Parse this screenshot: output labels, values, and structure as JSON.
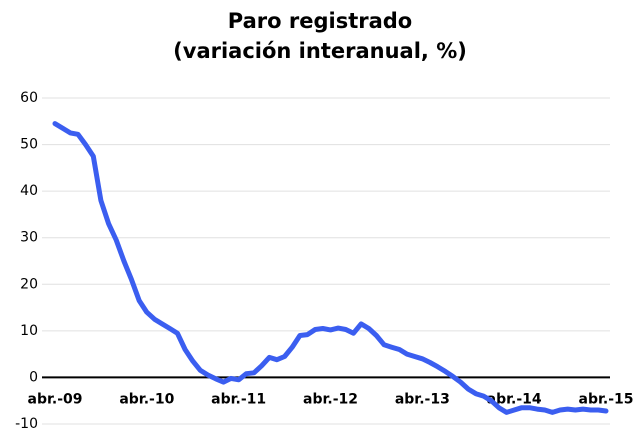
{
  "chart_data": {
    "type": "line",
    "title": "Paro registrado",
    "subtitle": "(variación interanual, %)",
    "categories": [
      "abr.-09",
      null,
      null,
      null,
      null,
      null,
      null,
      null,
      null,
      null,
      null,
      null,
      "abr.-10",
      null,
      null,
      null,
      null,
      null,
      null,
      null,
      null,
      null,
      null,
      null,
      "abr.-11",
      null,
      null,
      null,
      null,
      null,
      null,
      null,
      null,
      null,
      null,
      null,
      "abr.-12",
      null,
      null,
      null,
      null,
      null,
      null,
      null,
      null,
      null,
      null,
      null,
      "abr.-13",
      null,
      null,
      null,
      null,
      null,
      null,
      null,
      null,
      null,
      null,
      null,
      "abr.-14",
      null,
      null,
      null,
      null,
      null,
      null,
      null,
      null,
      null,
      null,
      null,
      "abr.-15"
    ],
    "series": [
      {
        "name": "Paro registrado",
        "color": "#3b5ef0",
        "values": [
          54.5,
          53.5,
          52.5,
          52.2,
          50,
          47.5,
          38,
          33,
          29.5,
          25,
          21,
          16.5,
          14,
          12.5,
          11.5,
          10.5,
          9.5,
          6,
          3.5,
          1.5,
          0.5,
          -0.3,
          -1,
          -0.2,
          -0.5,
          0.8,
          1,
          2.5,
          4.3,
          3.8,
          4.5,
          6.5,
          9,
          9.2,
          10.3,
          10.5,
          10.2,
          10.6,
          10.3,
          9.5,
          11.5,
          10.5,
          9,
          7,
          6.5,
          6,
          5,
          4.5,
          4,
          3.2,
          2.3,
          1.3,
          0.2,
          -1,
          -2.5,
          -3.5,
          -4,
          -5,
          -6.5,
          -7.5,
          -7,
          -6.5,
          -6.5,
          -6.8,
          -7,
          -7.5,
          -7,
          -6.8,
          -7,
          -6.8,
          -7,
          -7,
          -7.2
        ]
      }
    ],
    "ylim": [
      -10,
      60
    ],
    "yticks": [
      -10,
      0,
      10,
      20,
      30,
      40,
      50,
      60
    ],
    "grid": true
  }
}
